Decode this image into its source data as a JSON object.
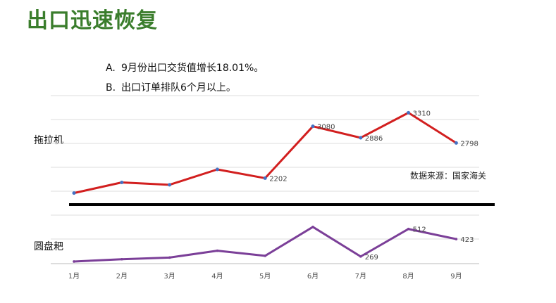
{
  "title": "出口迅速恢复",
  "bullets": [
    {
      "marker": "A.",
      "text": "9月份出口交货值增长18.01%。"
    },
    {
      "marker": "B.",
      "text": "出口订单排队6个月以上。"
    }
  ],
  "source": "数据来源：国家海关",
  "colors": {
    "title": "#3a7d2c",
    "series1": "#d21f1f",
    "series2": "#7b3f98",
    "points1": "#4472c4"
  },
  "chart_data": [
    {
      "type": "line",
      "label": "拖拉机",
      "categories": [
        "1月",
        "2月",
        "3月",
        "4月",
        "5月",
        "6月",
        "7月",
        "8月",
        "9月"
      ],
      "values": [
        1950,
        2130,
        2090,
        2350,
        2202,
        3080,
        2886,
        3310,
        2798
      ],
      "data_labels": [
        null,
        null,
        null,
        null,
        "2202",
        "3080",
        "2886",
        "3310",
        "2798"
      ],
      "ylim": [
        1600,
        3600
      ]
    },
    {
      "type": "line",
      "label": "圆盘耙",
      "categories": [
        "1月",
        "2月",
        "3月",
        "4月",
        "5月",
        "6月",
        "7月",
        "8月",
        "9月"
      ],
      "values": [
        225,
        245,
        260,
        320,
        275,
        530,
        269,
        512,
        423
      ],
      "data_labels": [
        null,
        null,
        null,
        null,
        null,
        null,
        "269",
        "512",
        "423"
      ],
      "ylim": [
        200,
        560
      ]
    }
  ]
}
